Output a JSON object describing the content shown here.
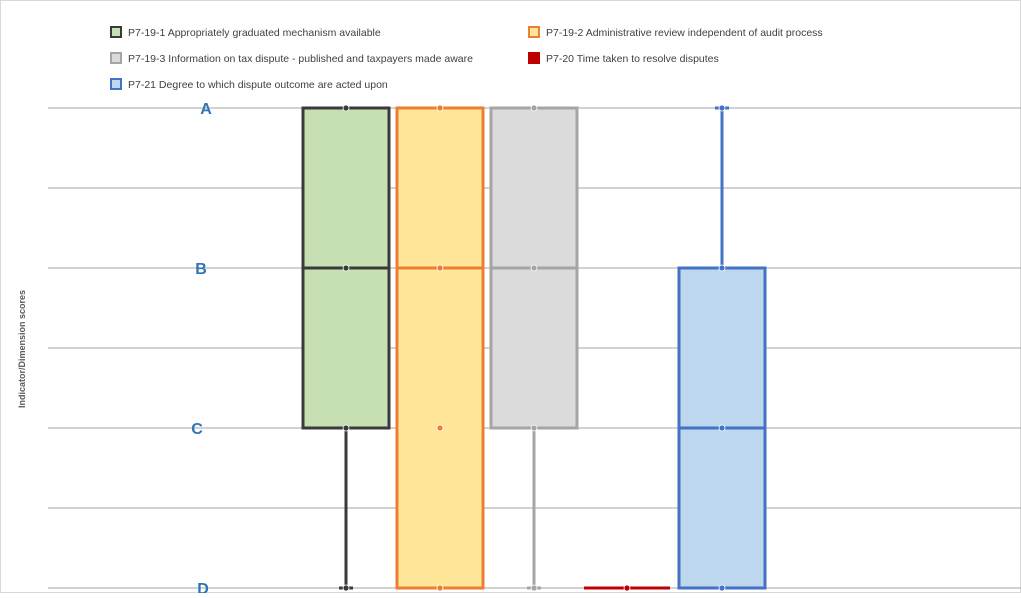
{
  "chart_data": {
    "type": "boxplot",
    "ylabel": "Indicator/Dimension scores",
    "y_ticks": [
      {
        "label": "A",
        "value": 4
      },
      {
        "label": "B",
        "value": 3
      },
      {
        "label": "C",
        "value": 2
      },
      {
        "label": "D",
        "value": 1
      }
    ],
    "ylim": [
      1,
      4
    ],
    "gridlines": [
      1,
      1.5,
      2,
      2.5,
      3,
      3.5,
      4
    ],
    "legend_position": "top-left",
    "series": [
      {
        "name": "P7-19-1 Appropriately graduated mechanism available",
        "color": "#3a3a3a",
        "fill": "#c6e0b4",
        "min": 1,
        "q1": 2,
        "median": 3,
        "q3": 4,
        "max": 4,
        "points": [
          1,
          2,
          3,
          4
        ]
      },
      {
        "name": "P7-19-2 Administrative review independent of audit process",
        "color": "#ed7d31",
        "fill": "#ffe699",
        "min": 1,
        "q1": 1,
        "median": 3,
        "q3": 4,
        "max": 4,
        "points": [
          1,
          2,
          3,
          4
        ]
      },
      {
        "name": "P7-19-3 Information on tax dispute - published and taxpayers made aware",
        "color": "#a5a5a5",
        "fill": "#dbdbdb",
        "min": 1,
        "q1": 2,
        "median": 3,
        "q3": 4,
        "max": 4,
        "points": [
          1,
          2,
          3,
          4
        ]
      },
      {
        "name": "P7-20 Time taken to resolve disputes",
        "color": "#c00000",
        "fill": "#c00000",
        "min": 1,
        "q1": 1,
        "median": 1,
        "q3": 1,
        "max": 1,
        "points": [
          1
        ]
      },
      {
        "name": "P7-21 Degree to which dispute outcome are acted upon",
        "color": "#4472c4",
        "fill": "#bdd7ee",
        "min": 1,
        "q1": 1,
        "median": 2,
        "q3": 3,
        "max": 4,
        "points": [
          1,
          2,
          3,
          4
        ]
      }
    ]
  }
}
